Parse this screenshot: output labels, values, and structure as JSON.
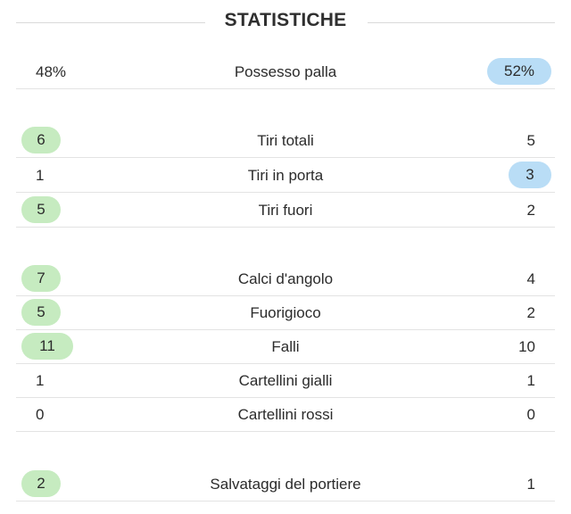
{
  "title": "STATISTICHE",
  "colors": {
    "home_highlight": "#c6ebc0",
    "away_highlight": "#b9ddf6",
    "divider": "#e3e3e3"
  },
  "stats": [
    {
      "label": "Possesso palla",
      "home": "48%",
      "away": "52%",
      "winner": "away"
    },
    {
      "label": "Tiri totali",
      "home": "6",
      "away": "5",
      "winner": "home"
    },
    {
      "label": "Tiri in porta",
      "home": "1",
      "away": "3",
      "winner": "away"
    },
    {
      "label": "Tiri fuori",
      "home": "5",
      "away": "2",
      "winner": "home"
    },
    {
      "label": "Calci d'angolo",
      "home": "7",
      "away": "4",
      "winner": "home"
    },
    {
      "label": "Fuorigioco",
      "home": "5",
      "away": "2",
      "winner": "home"
    },
    {
      "label": "Falli",
      "home": "11",
      "away": "10",
      "winner": "home"
    },
    {
      "label": "Cartellini gialli",
      "home": "1",
      "away": "1",
      "winner": "none"
    },
    {
      "label": "Cartellini rossi",
      "home": "0",
      "away": "0",
      "winner": "none"
    },
    {
      "label": "Salvataggi del portiere",
      "home": "2",
      "away": "1",
      "winner": "home"
    }
  ]
}
